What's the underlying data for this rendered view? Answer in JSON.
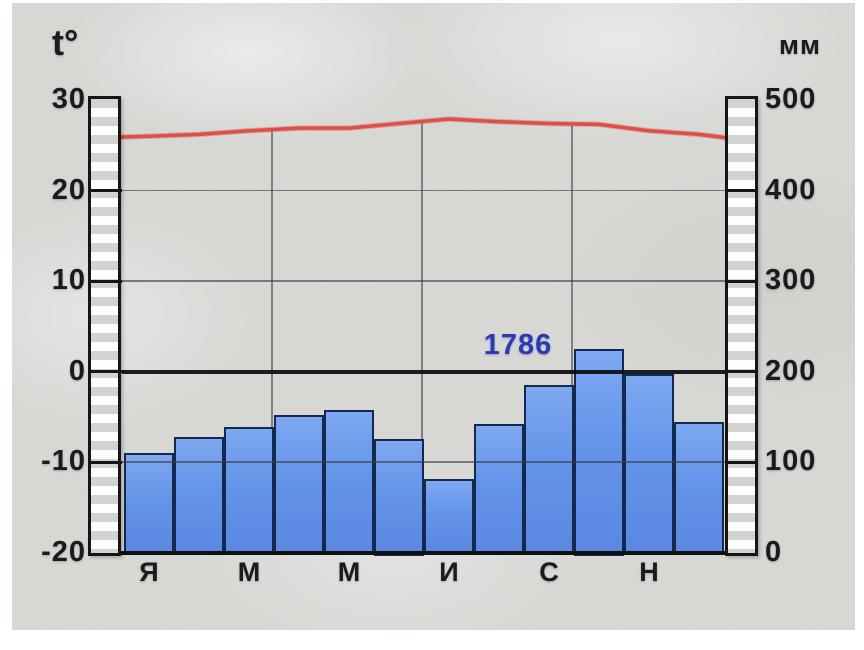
{
  "axes": {
    "temperature": {
      "title": "t°",
      "ticks": [
        "30",
        "20",
        "10",
        "0",
        "-10",
        "-20"
      ]
    },
    "precipitation": {
      "title": "мм",
      "ticks": [
        "500",
        "400",
        "300",
        "200",
        "100",
        "0"
      ]
    }
  },
  "annotation": {
    "total_precipitation": "1786"
  },
  "chart_data": [
    {
      "type": "bar",
      "name": "monthly-precipitation",
      "unit": "мм",
      "n_bars": 12,
      "x_tick_labels": [
        "Я",
        "М",
        "М",
        "И",
        "С",
        "Н"
      ],
      "x_tick_bar_indices": [
        0,
        2,
        4,
        6,
        8,
        10
      ],
      "values": [
        110,
        128,
        139,
        152,
        158,
        125,
        81,
        142,
        185,
        225,
        197,
        144
      ],
      "total_label": "1786",
      "ylim": [
        0,
        500
      ],
      "yticks": [
        500,
        400,
        300,
        200,
        100,
        0
      ],
      "grid": "major horizontal + quarterly vertical",
      "bar_fill_top": "#7EA8F1",
      "bar_fill_bottom": "#5B87E1",
      "bar_border": "#13294F"
    },
    {
      "type": "line",
      "name": "monthly-temperature",
      "unit": "t°",
      "values": [
        26.0,
        26.2,
        26.6,
        26.9,
        26.9,
        27.4,
        27.9,
        27.6,
        27.4,
        27.3,
        26.6,
        26.2
      ],
      "edge_start": 25.9,
      "edge_end": 25.8,
      "ylim": [
        -20,
        30
      ],
      "yticks": [
        30,
        20,
        10,
        0,
        -10,
        -20
      ],
      "color": "#DE4A41"
    }
  ],
  "colors": {
    "panel": "#D9D9D6",
    "text": "#1B1B1B",
    "total_text": "#2A3AB0",
    "temperature_line": "#DE4A41",
    "bar_fill": "#6495E9",
    "bar_border": "#13294F",
    "stripe_gray": "#D2D2CF",
    "gridline": "#3C3C40",
    "zero_line": "#0A0C12"
  }
}
